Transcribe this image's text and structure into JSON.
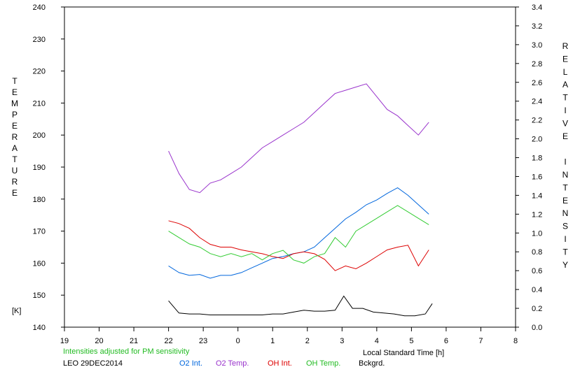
{
  "chart_data": {
    "type": "line",
    "left_axis": {
      "label": "TEMPERATURE",
      "unit": "[K]",
      "range": [
        140,
        240
      ],
      "ticks": [
        "140",
        "150",
        "160",
        "170",
        "180",
        "190",
        "200",
        "210",
        "220",
        "230",
        "240"
      ]
    },
    "right_axis": {
      "label": "RELATIVE INTENSITY",
      "range": [
        0.0,
        3.4
      ],
      "ticks": [
        "0.0",
        "0.2",
        "0.4",
        "0.6",
        "0.8",
        "1.0",
        "1.2",
        "1.4",
        "1.6",
        "1.8",
        "2.0",
        "2.2",
        "2.4",
        "2.6",
        "2.8",
        "3.0",
        "3.2",
        "3.4"
      ]
    },
    "x_axis": {
      "label": "Local Standard Time [h]",
      "ticks": [
        "19",
        "20",
        "21",
        "22",
        "23",
        "0",
        "1",
        "2",
        "3",
        "4",
        "5",
        "6",
        "7",
        "8"
      ],
      "range": [
        19,
        32
      ]
    },
    "note": "Intensities adjusted for PM sensitivity",
    "station": "LEO 29DEC2014",
    "series": [
      {
        "name": "O2 Int.",
        "axis": "right",
        "color": "#0066dd",
        "x": [
          22.0,
          22.3,
          22.6,
          22.9,
          23.2,
          23.5,
          23.8,
          24.1,
          24.4,
          24.7,
          25.0,
          25.3,
          25.6,
          25.9,
          26.2,
          26.5,
          26.8,
          27.1,
          27.4,
          27.7,
          28.0,
          28.3,
          28.6,
          28.9,
          29.2,
          29.5
        ],
        "y": [
          0.65,
          0.58,
          0.55,
          0.56,
          0.52,
          0.55,
          0.55,
          0.58,
          0.63,
          0.68,
          0.73,
          0.75,
          0.78,
          0.8,
          0.85,
          0.95,
          1.05,
          1.15,
          1.22,
          1.3,
          1.35,
          1.42,
          1.48,
          1.4,
          1.3,
          1.2
        ]
      },
      {
        "name": "O2 Temp.",
        "axis": "left",
        "color": "#9933cc",
        "x": [
          22.0,
          22.3,
          22.6,
          22.9,
          23.2,
          23.5,
          23.8,
          24.1,
          24.4,
          24.7,
          25.0,
          25.3,
          25.6,
          25.9,
          26.2,
          26.5,
          26.8,
          27.1,
          27.4,
          27.7,
          28.0,
          28.3,
          28.6,
          28.9,
          29.2,
          29.5
        ],
        "y": [
          195,
          188,
          183,
          182,
          185,
          186,
          188,
          190,
          193,
          196,
          198,
          200,
          202,
          204,
          207,
          210,
          213,
          214,
          215,
          216,
          212,
          208,
          206,
          203,
          200,
          204
        ]
      },
      {
        "name": "OH Int.",
        "axis": "right",
        "color": "#dd0000",
        "x": [
          22.0,
          22.3,
          22.6,
          22.9,
          23.2,
          23.5,
          23.8,
          24.1,
          24.4,
          24.7,
          25.0,
          25.3,
          25.6,
          25.9,
          26.2,
          26.5,
          26.8,
          27.1,
          27.4,
          27.7,
          28.0,
          28.3,
          28.6,
          28.9,
          29.2,
          29.5
        ],
        "y": [
          1.13,
          1.1,
          1.05,
          0.95,
          0.88,
          0.85,
          0.85,
          0.82,
          0.8,
          0.78,
          0.75,
          0.73,
          0.78,
          0.8,
          0.78,
          0.72,
          0.6,
          0.65,
          0.62,
          0.68,
          0.75,
          0.82,
          0.85,
          0.87,
          0.65,
          0.82
        ]
      },
      {
        "name": "OH Temp.",
        "axis": "left",
        "color": "#33cc33",
        "x": [
          22.0,
          22.3,
          22.6,
          22.9,
          23.2,
          23.5,
          23.8,
          24.1,
          24.4,
          24.7,
          25.0,
          25.3,
          25.6,
          25.9,
          26.2,
          26.5,
          26.8,
          27.1,
          27.4,
          27.7,
          28.0,
          28.3,
          28.6,
          28.9,
          29.2,
          29.5
        ],
        "y": [
          170,
          168,
          166,
          165,
          163,
          162,
          163,
          162,
          163,
          161,
          163,
          164,
          161,
          160,
          162,
          163,
          168,
          165,
          170,
          172,
          174,
          176,
          178,
          176,
          174,
          172
        ]
      },
      {
        "name": "Bckgrd.",
        "axis": "right",
        "color": "#000000",
        "x": [
          22.0,
          22.3,
          22.6,
          22.9,
          23.2,
          23.5,
          23.8,
          24.1,
          24.4,
          24.7,
          25.0,
          25.3,
          25.6,
          25.9,
          26.2,
          26.5,
          26.8,
          27.05,
          27.3,
          27.6,
          27.9,
          28.2,
          28.5,
          28.8,
          29.1,
          29.4,
          29.6
        ],
        "y": [
          0.28,
          0.15,
          0.14,
          0.14,
          0.13,
          0.13,
          0.13,
          0.13,
          0.13,
          0.13,
          0.14,
          0.14,
          0.16,
          0.18,
          0.17,
          0.17,
          0.18,
          0.33,
          0.2,
          0.2,
          0.16,
          0.15,
          0.14,
          0.12,
          0.12,
          0.14,
          0.25
        ]
      }
    ]
  }
}
